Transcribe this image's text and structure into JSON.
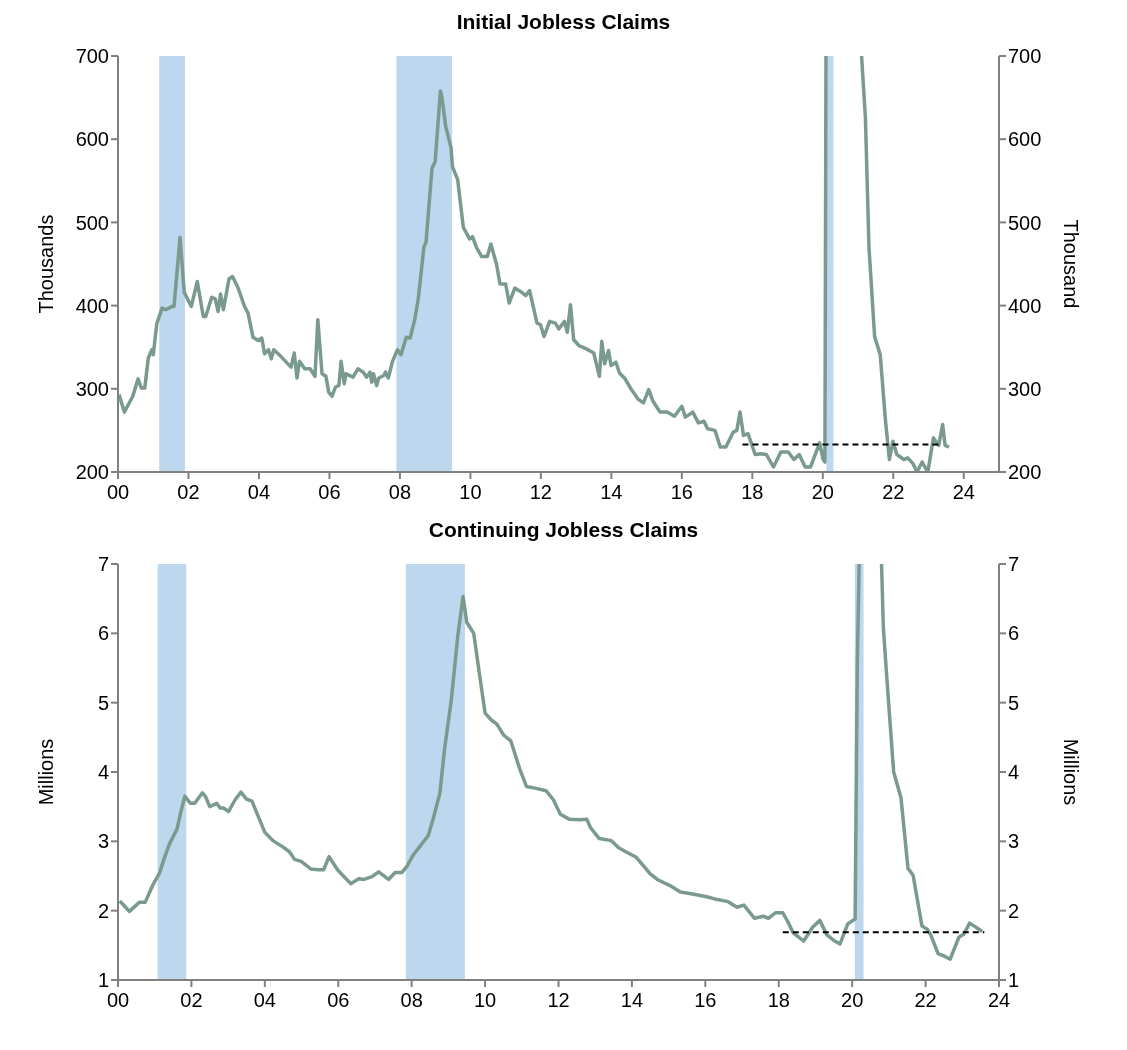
{
  "chart_data": [
    {
      "type": "line",
      "title": "Initial Jobless Claims",
      "ylabel": "Thousands",
      "y2label": "Thousand",
      "xlim": [
        0,
        25
      ],
      "xticks": [
        {
          "value": 0,
          "label": "00"
        },
        {
          "value": 2,
          "label": "02"
        },
        {
          "value": 4,
          "label": "04"
        },
        {
          "value": 6,
          "label": "06"
        },
        {
          "value": 8,
          "label": "08"
        },
        {
          "value": 10,
          "label": "10"
        },
        {
          "value": 12,
          "label": "12"
        },
        {
          "value": 14,
          "label": "14"
        },
        {
          "value": 16,
          "label": "16"
        },
        {
          "value": 18,
          "label": "18"
        },
        {
          "value": 20,
          "label": "20"
        },
        {
          "value": 22,
          "label": "22"
        },
        {
          "value": 24,
          "label": "24"
        }
      ],
      "ylim": [
        200,
        700
      ],
      "yticks": [
        200,
        300,
        400,
        500,
        600,
        700
      ],
      "y2lim": [
        200,
        700
      ],
      "y2ticks": [
        200,
        300,
        400,
        500,
        600,
        700
      ],
      "bands": [
        {
          "axis": "x",
          "from": 1.17,
          "to": 1.9,
          "color": "#bdd7ee"
        },
        {
          "axis": "x",
          "from": 7.9,
          "to": 9.48,
          "color": "#bdd7ee"
        },
        {
          "axis": "x",
          "from": 20.1,
          "to": 20.3,
          "color": "#bdd7ee"
        }
      ],
      "series": [
        {
          "type": "line",
          "color": "#7a9a8e",
          "x": [
            0.03,
            0.18,
            0.42,
            0.57,
            0.66,
            0.76,
            0.86,
            0.96,
            1.0,
            1.1,
            1.25,
            1.35,
            1.54,
            1.59,
            1.76,
            1.88,
            2.08,
            2.25,
            2.42,
            2.49,
            2.66,
            2.76,
            2.84,
            2.91,
            2.99,
            3.15,
            3.25,
            3.4,
            3.59,
            3.69,
            3.83,
            3.98,
            4.08,
            4.16,
            4.27,
            4.35,
            4.42,
            4.62,
            4.91,
            5.0,
            5.08,
            5.15,
            5.3,
            5.45,
            5.59,
            5.67,
            5.79,
            5.9,
            5.98,
            6.07,
            6.17,
            6.27,
            6.33,
            6.42,
            6.47,
            6.67,
            6.81,
            6.96,
            7.05,
            7.15,
            7.2,
            7.25,
            7.34,
            7.4,
            7.54,
            7.59,
            7.67,
            7.79,
            7.93,
            8.03,
            8.18,
            8.29,
            8.42,
            8.52,
            8.68,
            8.74,
            8.91,
            9.0,
            9.15,
            9.2,
            9.3,
            9.45,
            9.49,
            9.64,
            9.8,
            9.98,
            10.06,
            10.17,
            10.32,
            10.48,
            10.58,
            10.74,
            10.84,
            11.0,
            11.1,
            11.26,
            11.42,
            11.57,
            11.68,
            11.89,
            11.99,
            12.09,
            12.25,
            12.41,
            12.51,
            12.67,
            12.75,
            12.84,
            12.93,
            13.08,
            13.29,
            13.5,
            13.66,
            13.73,
            13.81,
            13.92,
            13.99,
            14.13,
            14.23,
            14.39,
            14.54,
            14.75,
            14.91,
            15.06,
            15.17,
            15.38,
            15.58,
            15.79,
            16.0,
            16.1,
            16.31,
            16.47,
            16.63,
            16.73,
            16.94,
            17.09,
            17.25,
            17.46,
            17.56,
            17.65,
            17.75,
            17.88,
            18.08,
            18.24,
            18.4,
            18.6,
            18.81,
            19.02,
            19.18,
            19.33,
            19.5,
            19.65,
            19.91,
            20.01,
            20.06,
            20.09,
            20.6,
            21.1,
            21.21,
            21.31,
            21.47,
            21.63,
            21.78,
            21.89,
            21.99,
            22.1,
            22.3,
            22.41,
            22.56,
            22.67,
            22.82,
            22.98,
            23.14,
            23.29,
            23.4,
            23.47,
            23.58
          ],
          "values": [
            293,
            272,
            291,
            312,
            301,
            301,
            337,
            347,
            341,
            378,
            397,
            395,
            399,
            399,
            482,
            416,
            399,
            429,
            387,
            387,
            410,
            408,
            393,
            414,
            395,
            432,
            435,
            422,
            399,
            391,
            362,
            358,
            361,
            342,
            347,
            336,
            347,
            339,
            326,
            343,
            313,
            333,
            324,
            324,
            315,
            383,
            318,
            315,
            296,
            291,
            302,
            304,
            333,
            306,
            318,
            314,
            324,
            320,
            314,
            320,
            308,
            318,
            304,
            313,
            316,
            320,
            313,
            333,
            347,
            341,
            362,
            361,
            383,
            408,
            470,
            476,
            565,
            573,
            658,
            648,
            615,
            590,
            567,
            551,
            494,
            480,
            483,
            470,
            459,
            459,
            474,
            450,
            426,
            426,
            403,
            421,
            417,
            412,
            418,
            379,
            377,
            363,
            381,
            379,
            372,
            381,
            368,
            401,
            359,
            352,
            348,
            343,
            315,
            357,
            330,
            346,
            328,
            332,
            319,
            312,
            301,
            288,
            283,
            299,
            286,
            272,
            272,
            267,
            279,
            266,
            272,
            259,
            261,
            252,
            250,
            230,
            230,
            248,
            250,
            272,
            244,
            246,
            221,
            222,
            221,
            206,
            224,
            224,
            215,
            221,
            206,
            206,
            235,
            215,
            212,
            700,
            null,
            700,
            625,
            470,
            363,
            341,
            261,
            215,
            237,
            221,
            215,
            217,
            210,
            200,
            212,
            200,
            241,
            232,
            257,
            232,
            230
          ]
        },
        {
          "type": "line",
          "color": "#000000",
          "line_style": "dashed",
          "x": [
            17.72,
            23.3
          ],
          "values": [
            233,
            233
          ]
        }
      ]
    },
    {
      "type": "line",
      "title": "Continuing Jobless Claims",
      "ylabel": "Millions",
      "y2label": "Millions",
      "xlim": [
        0,
        24
      ],
      "xticks": [
        {
          "value": 0,
          "label": "00"
        },
        {
          "value": 2,
          "label": "02"
        },
        {
          "value": 4,
          "label": "04"
        },
        {
          "value": 6,
          "label": "06"
        },
        {
          "value": 8,
          "label": "08"
        },
        {
          "value": 10,
          "label": "10"
        },
        {
          "value": 12,
          "label": "12"
        },
        {
          "value": 14,
          "label": "14"
        },
        {
          "value": 16,
          "label": "16"
        },
        {
          "value": 18,
          "label": "18"
        },
        {
          "value": 20,
          "label": "20"
        },
        {
          "value": 22,
          "label": "22"
        },
        {
          "value": 24,
          "label": "24"
        }
      ],
      "ylim": [
        1,
        7
      ],
      "yticks": [
        1,
        2,
        3,
        4,
        5,
        6,
        7
      ],
      "y2lim": [
        1,
        7
      ],
      "y2ticks": [
        1,
        2,
        3,
        4,
        5,
        6,
        7
      ],
      "bands": [
        {
          "axis": "x",
          "from": 1.08,
          "to": 1.86,
          "color": "#bdd7ee"
        },
        {
          "axis": "x",
          "from": 7.84,
          "to": 9.45,
          "color": "#bdd7ee"
        },
        {
          "axis": "x",
          "from": 20.07,
          "to": 20.31,
          "color": "#bdd7ee"
        }
      ],
      "series": [
        {
          "type": "line",
          "color": "#7a9a8e",
          "x": [
            0.05,
            0.31,
            0.58,
            0.74,
            0.94,
            1.13,
            1.25,
            1.4,
            1.61,
            1.7,
            1.82,
            1.97,
            2.09,
            2.3,
            2.38,
            2.5,
            2.69,
            2.78,
            2.87,
            3.01,
            3.19,
            3.35,
            3.5,
            3.65,
            3.82,
            4.0,
            4.22,
            4.49,
            4.67,
            4.81,
            4.99,
            5.26,
            5.45,
            5.6,
            5.75,
            5.98,
            6.16,
            6.34,
            6.56,
            6.7,
            6.92,
            7.1,
            7.37,
            7.55,
            7.73,
            7.87,
            8.05,
            8.23,
            8.45,
            8.59,
            8.77,
            8.9,
            9.08,
            9.26,
            9.4,
            9.5,
            9.69,
            9.84,
            10.0,
            10.17,
            10.32,
            10.51,
            10.7,
            10.94,
            11.13,
            11.42,
            11.66,
            11.86,
            12.05,
            12.29,
            12.58,
            12.77,
            12.87,
            13.11,
            13.44,
            13.63,
            13.83,
            14.12,
            14.5,
            14.69,
            15.08,
            15.32,
            15.65,
            16.04,
            16.33,
            16.62,
            16.86,
            17.05,
            17.34,
            17.58,
            17.72,
            17.91,
            18.11,
            18.25,
            18.39,
            18.54,
            18.68,
            18.92,
            19.12,
            19.31,
            19.5,
            19.67,
            19.88,
            20.08,
            20.14,
            20.19,
            20.5,
            20.8,
            20.85,
            20.94,
            21.13,
            21.33,
            21.52,
            21.66,
            21.9,
            22.05,
            22.14,
            22.34,
            22.53,
            22.67,
            22.91,
            23.04,
            23.2,
            23.35,
            23.54
          ],
          "values": [
            2.14,
            1.99,
            2.12,
            2.12,
            2.36,
            2.54,
            2.74,
            2.96,
            3.18,
            3.4,
            3.65,
            3.55,
            3.55,
            3.7,
            3.65,
            3.5,
            3.55,
            3.48,
            3.48,
            3.43,
            3.6,
            3.71,
            3.61,
            3.58,
            3.36,
            3.13,
            3.01,
            2.92,
            2.85,
            2.74,
            2.71,
            2.6,
            2.59,
            2.59,
            2.78,
            2.59,
            2.49,
            2.39,
            2.46,
            2.45,
            2.49,
            2.56,
            2.45,
            2.55,
            2.55,
            2.64,
            2.81,
            2.93,
            3.08,
            3.33,
            3.7,
            4.35,
            5.04,
            5.98,
            6.53,
            6.16,
            6.0,
            5.44,
            4.85,
            4.75,
            4.69,
            4.53,
            4.45,
            4.05,
            3.79,
            3.76,
            3.73,
            3.6,
            3.39,
            3.32,
            3.31,
            3.32,
            3.2,
            3.04,
            3.01,
            2.91,
            2.85,
            2.77,
            2.53,
            2.45,
            2.35,
            2.27,
            2.24,
            2.2,
            2.16,
            2.13,
            2.05,
            2.08,
            1.89,
            1.92,
            1.89,
            1.97,
            1.97,
            1.84,
            1.68,
            1.62,
            1.56,
            1.76,
            1.86,
            1.65,
            1.57,
            1.52,
            1.81,
            1.88,
            5.55,
            7,
            null,
            7,
            6.08,
            5.39,
            4.0,
            3.63,
            2.61,
            2.51,
            1.78,
            1.73,
            1.65,
            1.38,
            1.34,
            1.3,
            1.62,
            1.66,
            1.82,
            1.77,
            1.7
          ]
        },
        {
          "type": "line",
          "color": "#000000",
          "line_style": "dashed",
          "x": [
            18.11,
            23.6
          ],
          "values": [
            1.69,
            1.69
          ]
        }
      ]
    }
  ]
}
